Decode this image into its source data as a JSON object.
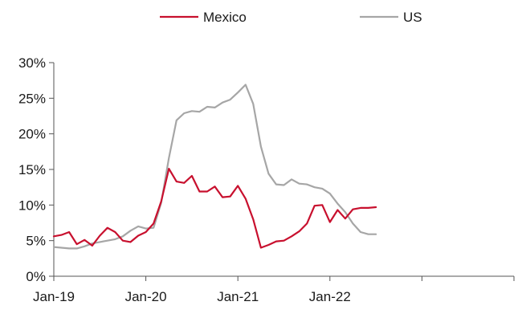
{
  "chart_data": {
    "type": "line",
    "x_ticks": [
      "Jan-19",
      "Jan-20",
      "Jan-21",
      "Jan-22"
    ],
    "y_ticks": [
      "0%",
      "5%",
      "10%",
      "15%",
      "20%",
      "25%",
      "30%"
    ],
    "ylim": [
      0,
      30
    ],
    "x_start": "2019-01",
    "x_end": "2023-12",
    "grid": false,
    "legend_position": "top",
    "series": [
      {
        "name": "Mexico",
        "color": "#c8102e",
        "x": [
          "2019-01",
          "2019-02",
          "2019-03",
          "2019-04",
          "2019-05",
          "2019-06",
          "2019-07",
          "2019-08",
          "2019-09",
          "2019-10",
          "2019-11",
          "2019-12",
          "2020-01",
          "2020-02",
          "2020-03",
          "2020-04",
          "2020-05",
          "2020-06",
          "2020-07",
          "2020-08",
          "2020-09",
          "2020-10",
          "2020-11",
          "2020-12",
          "2021-01",
          "2021-02",
          "2021-03",
          "2021-04",
          "2021-05",
          "2021-06",
          "2021-07",
          "2021-08",
          "2021-09",
          "2021-10",
          "2021-11",
          "2021-12",
          "2022-01",
          "2022-02",
          "2022-03",
          "2022-04",
          "2022-05",
          "2022-06",
          "2022-07"
        ],
        "values": [
          5.6,
          5.8,
          6.2,
          4.5,
          5.1,
          4.3,
          5.7,
          6.8,
          6.2,
          5.0,
          4.8,
          5.7,
          6.2,
          7.4,
          10.5,
          15.1,
          13.3,
          13.1,
          14.1,
          11.9,
          11.9,
          12.6,
          11.1,
          11.2,
          12.7,
          10.9,
          8.0,
          4.0,
          4.4,
          4.9,
          5.0,
          5.6,
          6.3,
          7.4,
          9.9,
          10.0,
          7.6,
          9.3,
          8.1,
          9.4,
          9.6,
          9.6,
          9.7
        ]
      },
      {
        "name": "US",
        "color": "#a6a6a6",
        "x": [
          "2019-01",
          "2019-02",
          "2019-03",
          "2019-04",
          "2019-05",
          "2019-06",
          "2019-07",
          "2019-08",
          "2019-09",
          "2019-10",
          "2019-11",
          "2019-12",
          "2020-01",
          "2020-02",
          "2020-03",
          "2020-04",
          "2020-05",
          "2020-06",
          "2020-07",
          "2020-08",
          "2020-09",
          "2020-10",
          "2020-11",
          "2020-12",
          "2021-01",
          "2021-02",
          "2021-03",
          "2021-04",
          "2021-05",
          "2021-06",
          "2021-07",
          "2021-08",
          "2021-09",
          "2021-10",
          "2021-11",
          "2021-12",
          "2022-01",
          "2022-02",
          "2022-03",
          "2022-04",
          "2022-05",
          "2022-06",
          "2022-07"
        ],
        "values": [
          4.1,
          4.0,
          3.9,
          3.9,
          4.2,
          4.6,
          4.8,
          5.0,
          5.2,
          5.6,
          6.4,
          7.0,
          6.7,
          6.8,
          10.3,
          16.6,
          21.9,
          22.9,
          23.2,
          23.1,
          23.8,
          23.7,
          24.4,
          24.8,
          25.8,
          26.9,
          24.2,
          18.2,
          14.4,
          12.9,
          12.8,
          13.6,
          13.0,
          12.9,
          12.5,
          12.3,
          11.6,
          10.2,
          9.0,
          7.4,
          6.2,
          5.9,
          5.9
        ]
      }
    ]
  }
}
